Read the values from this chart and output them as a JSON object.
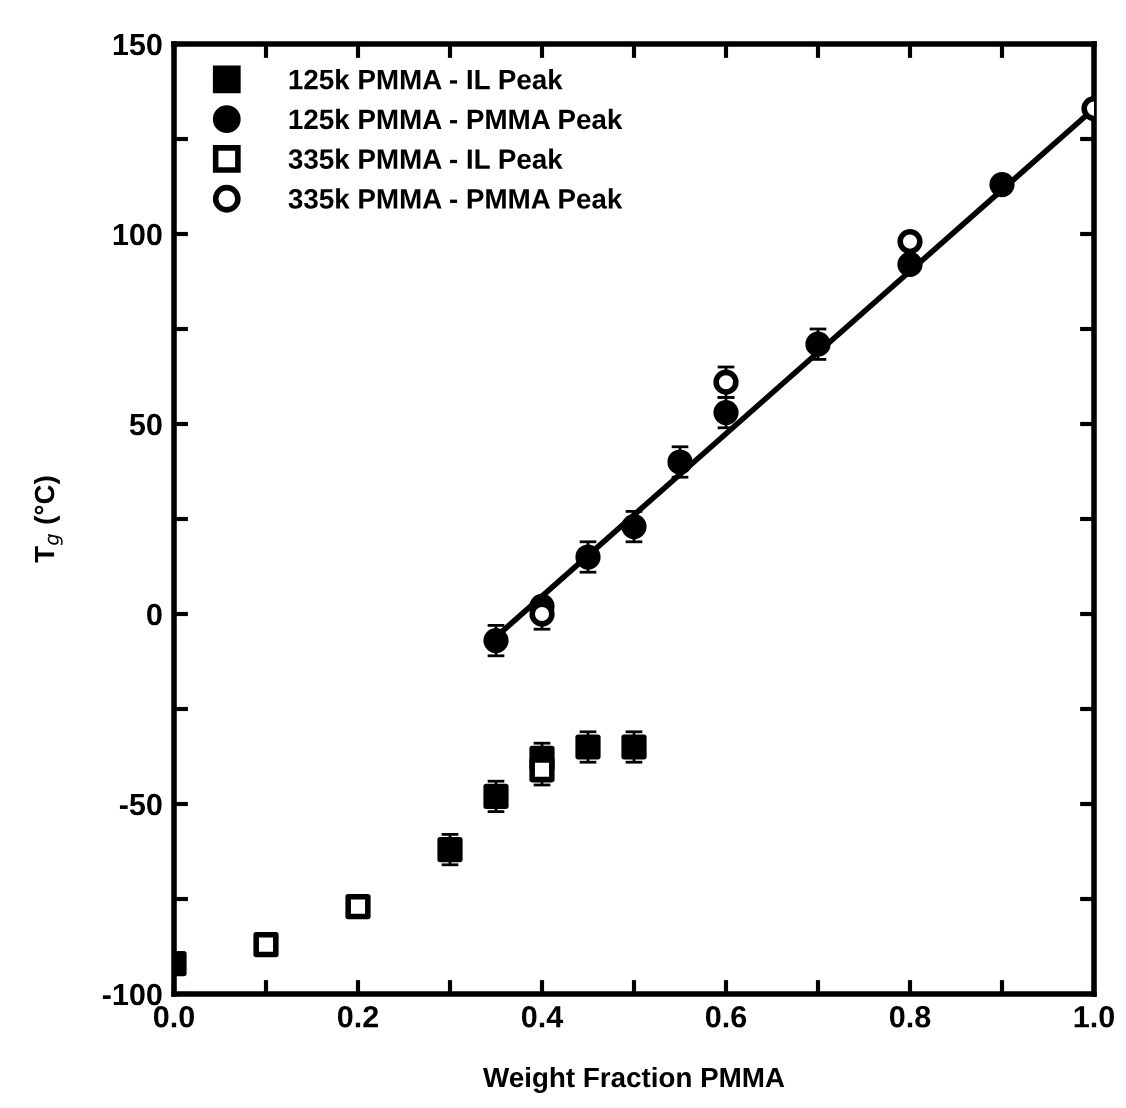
{
  "chart_data": {
    "type": "scatter",
    "xlabel": "Weight Fraction PMMA",
    "ylabel": "T$_{g}$ (°C)",
    "xlim": [
      0,
      1
    ],
    "ylim": [
      -100,
      150
    ],
    "xticks": [
      {
        "value": 0,
        "label": "0.0"
      },
      {
        "value": 0.1,
        "label": null
      },
      {
        "value": 0.2,
        "label": "0.2"
      },
      {
        "value": 0.3,
        "label": null
      },
      {
        "value": 0.4,
        "label": "0.4"
      },
      {
        "value": 0.5,
        "label": null
      },
      {
        "value": 0.6,
        "label": "0.6"
      },
      {
        "value": 0.7,
        "label": null
      },
      {
        "value": 0.8,
        "label": "0.8"
      },
      {
        "value": 0.9,
        "label": null
      },
      {
        "value": 1,
        "label": "1.0"
      }
    ],
    "yticks": [
      -100,
      {
        "value": -75,
        "label": null
      },
      -50,
      {
        "value": -25,
        "label": null
      },
      0,
      {
        "value": 25,
        "label": null
      },
      50,
      {
        "value": 75,
        "label": null
      },
      100,
      {
        "value": 125,
        "label": null
      },
      150
    ],
    "legend": "top left",
    "grid": false,
    "series": [
      {
        "name": "125k PMMA - IL Peak",
        "color": "#000000",
        "marker": "square",
        "x": [
          0,
          0.3,
          0.35,
          0.4,
          0.45,
          0.5
        ],
        "values": [
          -92,
          -62,
          -48,
          -38,
          -35,
          -35
        ],
        "errors": [
          null,
          4,
          4,
          4,
          4,
          4
        ]
      },
      {
        "name": "125k PMMA - PMMA Peak",
        "color": "#000000",
        "marker": "circle",
        "x": [
          0.35,
          0.4,
          0.45,
          0.5,
          0.55,
          0.6,
          0.7,
          0.8,
          0.9
        ],
        "values": [
          -7,
          2,
          15,
          23,
          40,
          53,
          71,
          92,
          113
        ],
        "errors": [
          4,
          null,
          4,
          4,
          4,
          4,
          4,
          null,
          null
        ]
      },
      {
        "name": "335k PMMA - IL Peak",
        "color": "#ffffff",
        "marker": "square",
        "x": [
          0.1,
          0.2,
          0.4
        ],
        "values": [
          -87,
          -77,
          -41
        ],
        "errors": [
          null,
          null,
          4
        ]
      },
      {
        "name": "335k PMMA - PMMA Peak",
        "color": "#ffffff",
        "marker": "circle",
        "x": [
          0.4,
          0.6,
          0.8,
          1.0
        ],
        "values": [
          0,
          61,
          98,
          133
        ],
        "errors": [
          4,
          4,
          null,
          null
        ]
      },
      {
        "type": "line",
        "color": "#000000",
        "marker": "none",
        "line_style": "solid",
        "x": [
          0.35,
          1.0
        ],
        "values": [
          -6,
          133
        ]
      }
    ]
  }
}
